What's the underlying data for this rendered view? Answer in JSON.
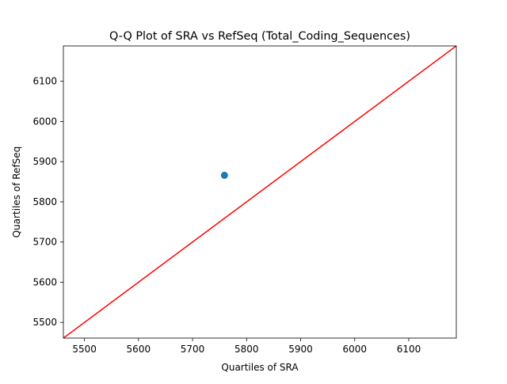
{
  "chart_data": {
    "type": "scatter",
    "title": "Q-Q Plot of SRA vs RefSeq (Total_Coding_Sequences)",
    "xlabel": "Quartiles of SRA",
    "ylabel": "Quartiles of RefSeq",
    "xlim": [
      5461,
      6188
    ],
    "ylim": [
      5461,
      6188
    ],
    "xticks": [
      5500,
      5600,
      5700,
      5800,
      5900,
      6000,
      6100
    ],
    "yticks": [
      5500,
      5600,
      5700,
      5800,
      5900,
      6000,
      6100
    ],
    "grid": false,
    "legend": "none",
    "series": [
      {
        "color": "#1f77b4",
        "points": [
          {
            "x": 5759,
            "y": 5866
          }
        ]
      }
    ],
    "reference_line": {
      "color": "#ff0000",
      "x": [
        5461,
        6188
      ],
      "y": [
        5461,
        6188
      ]
    }
  }
}
